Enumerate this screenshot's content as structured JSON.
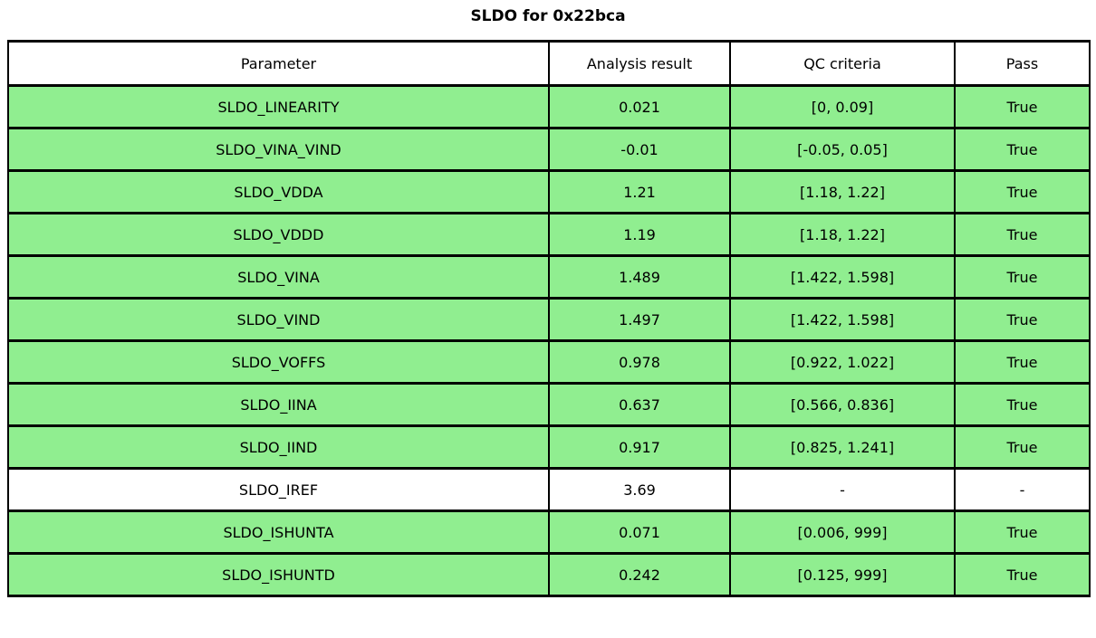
{
  "chart_data": {
    "type": "table",
    "title": "SLDO for 0x22bca",
    "columns": [
      "Parameter",
      "Analysis result",
      "QC criteria",
      "Pass"
    ],
    "rows": [
      {
        "parameter": "SLDO_LINEARITY",
        "result": "0.021",
        "qc": "[0, 0.09]",
        "pass": "True",
        "fill": "#90ee90"
      },
      {
        "parameter": "SLDO_VINA_VIND",
        "result": "-0.01",
        "qc": "[-0.05, 0.05]",
        "pass": "True",
        "fill": "#90ee90"
      },
      {
        "parameter": "SLDO_VDDA",
        "result": "1.21",
        "qc": "[1.18, 1.22]",
        "pass": "True",
        "fill": "#90ee90"
      },
      {
        "parameter": "SLDO_VDDD",
        "result": "1.19",
        "qc": "[1.18, 1.22]",
        "pass": "True",
        "fill": "#90ee90"
      },
      {
        "parameter": "SLDO_VINA",
        "result": "1.489",
        "qc": "[1.422, 1.598]",
        "pass": "True",
        "fill": "#90ee90"
      },
      {
        "parameter": "SLDO_VIND",
        "result": "1.497",
        "qc": "[1.422, 1.598]",
        "pass": "True",
        "fill": "#90ee90"
      },
      {
        "parameter": "SLDO_VOFFS",
        "result": "0.978",
        "qc": "[0.922, 1.022]",
        "pass": "True",
        "fill": "#90ee90"
      },
      {
        "parameter": "SLDO_IINA",
        "result": "0.637",
        "qc": "[0.566, 0.836]",
        "pass": "True",
        "fill": "#90ee90"
      },
      {
        "parameter": "SLDO_IIND",
        "result": "0.917",
        "qc": "[0.825, 1.241]",
        "pass": "True",
        "fill": "#90ee90"
      },
      {
        "parameter": "SLDO_IREF",
        "result": "3.69",
        "qc": "-",
        "pass": "-",
        "fill": "#ffffff"
      },
      {
        "parameter": "SLDO_ISHUNTA",
        "result": "0.071",
        "qc": "[0.006, 999]",
        "pass": "True",
        "fill": "#90ee90"
      },
      {
        "parameter": "SLDO_ISHUNTD",
        "result": "0.242",
        "qc": "[0.125, 999]",
        "pass": "True",
        "fill": "#90ee90"
      }
    ],
    "layout": {
      "header_fill": "#ffffff",
      "pass_fill": "#90ee90",
      "border_color": "#000000",
      "legend": "none",
      "grid": "table-borders"
    }
  }
}
